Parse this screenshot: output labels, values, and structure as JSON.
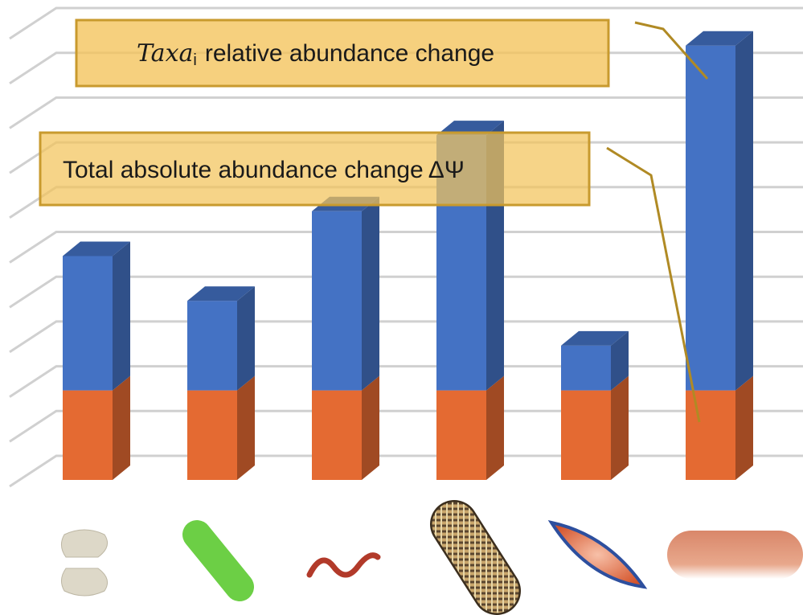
{
  "chart_data": {
    "type": "bar3d_stacked",
    "series": [
      {
        "color": "#e46a32",
        "values": [
          2,
          2,
          2,
          2,
          2,
          2
        ]
      },
      {
        "color": "#4472c4",
        "values": [
          3,
          2,
          4,
          5.7,
          1,
          7.7
        ]
      }
    ],
    "ylim": [
      0,
      10
    ],
    "yticks": [
      0,
      1,
      2,
      3,
      4,
      5,
      6,
      7,
      8,
      9,
      10
    ],
    "grid": true,
    "annotations": [
      {
        "italic": "Taxa",
        "sub": "i",
        "text": "relative abundance change"
      },
      {
        "text": "Total absolute abundance change",
        "symbol": "ΔΨ"
      }
    ]
  }
}
